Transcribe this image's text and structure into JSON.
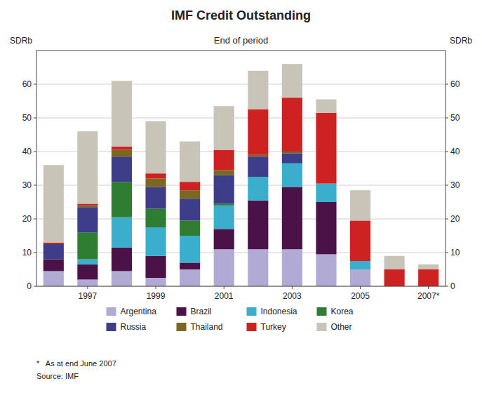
{
  "chart_data": {
    "type": "bar",
    "stacked": true,
    "title": "IMF Credit Outstanding",
    "subtitle": "End of period",
    "ylabel": "SDRb",
    "footnotes": [
      "*   As at end June 2007",
      "Source: IMF"
    ],
    "categories": [
      null,
      "1997",
      null,
      "1999",
      null,
      "2001",
      null,
      "2003",
      null,
      "2005",
      null,
      "2007*"
    ],
    "series": [
      {
        "name": "Argentina",
        "color": "#b0aad4",
        "values": [
          4.5,
          2.0,
          4.5,
          2.5,
          5.0,
          11.0,
          11.0,
          11.0,
          9.5,
          5.0,
          0.0,
          0.0
        ]
      },
      {
        "name": "Brazil",
        "color": "#4b1248",
        "values": [
          3.5,
          4.5,
          7.0,
          6.5,
          2.0,
          6.0,
          14.5,
          18.5,
          15.5,
          0.0,
          0.0,
          0.0
        ]
      },
      {
        "name": "Indonesia",
        "color": "#3aaecc",
        "values": [
          0.0,
          1.5,
          9.0,
          8.5,
          8.0,
          7.0,
          7.0,
          7.0,
          5.5,
          2.5,
          0.0,
          0.0
        ]
      },
      {
        "name": "Korea",
        "color": "#2e7d32",
        "values": [
          0.0,
          8.0,
          10.5,
          5.5,
          4.5,
          0.5,
          0.0,
          0.0,
          0.0,
          0.0,
          0.0,
          0.0
        ]
      },
      {
        "name": "Russia",
        "color": "#3d3d8a",
        "values": [
          4.5,
          7.5,
          7.5,
          6.5,
          6.5,
          8.5,
          6.0,
          3.0,
          0.0,
          0.0,
          0.0,
          0.0
        ]
      },
      {
        "name": "Thailand",
        "color": "#7a6820",
        "values": [
          0.0,
          0.5,
          2.0,
          2.5,
          2.5,
          1.5,
          0.5,
          0.5,
          0.0,
          0.0,
          0.0,
          0.0
        ]
      },
      {
        "name": "Turkey",
        "color": "#cc2222",
        "values": [
          0.5,
          0.5,
          1.0,
          1.5,
          2.5,
          6.0,
          13.5,
          16.0,
          21.0,
          12.0,
          5.0,
          5.0
        ]
      },
      {
        "name": "Other",
        "color": "#c8c4b8",
        "values": [
          23.0,
          21.5,
          19.5,
          15.5,
          12.0,
          13.0,
          11.5,
          10.0,
          4.0,
          9.0,
          4.0,
          1.5
        ]
      }
    ],
    "ylim": [
      0,
      70
    ],
    "yticks": [
      0,
      10,
      20,
      30,
      40,
      50,
      60
    ],
    "grid": true,
    "legend": "bottom"
  }
}
